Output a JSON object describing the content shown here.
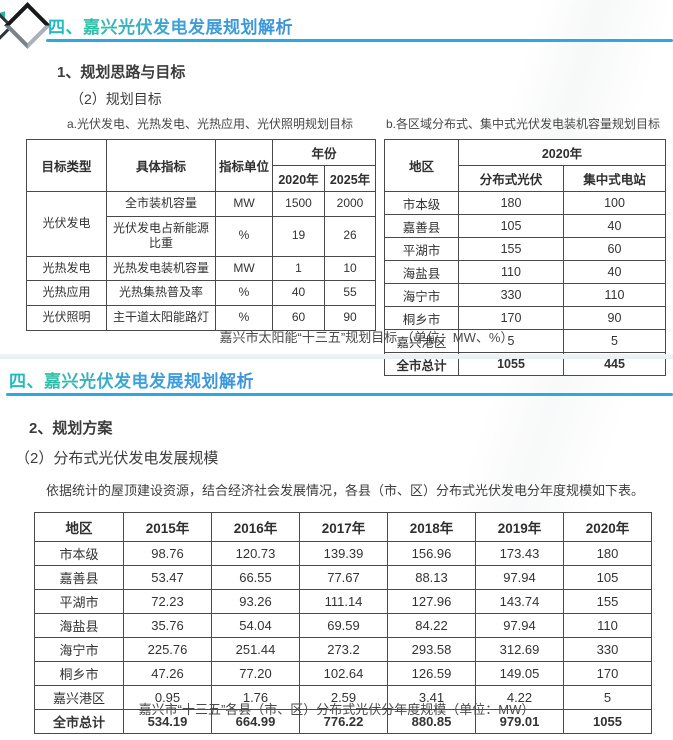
{
  "slide1": {
    "title": "四、嘉兴光伏发电发展规划解析",
    "section": "1、规划思路与目标",
    "subsection": "（2）规划目标",
    "table_a_label": "a.光伏发电、光热发电、光热应用、光伏照明规划目标",
    "table_b_label": "b.各区域分布式、集中式光伏发电装机容量规划目标",
    "caption": "嘉兴市太阳能“十三五”规划目标 （单位：MW、%）",
    "targets_table": {
      "headers": {
        "col_type": "目标类型",
        "col_indicator": "具体指标",
        "col_unit": "指标单位",
        "year_group": "年份",
        "year_cols": [
          "2020年",
          "2025年"
        ]
      },
      "rows": [
        {
          "type": "光伏发电",
          "type_rowspan": 2,
          "indicator": "全市装机容量",
          "unit": "MW",
          "values": [
            "1500",
            "2000"
          ]
        },
        {
          "indicator": "光伏发电占新能源比重",
          "unit": "%",
          "values": [
            "19",
            "26"
          ]
        },
        {
          "type": "光热发电",
          "indicator": "光热发电装机容量",
          "unit": "MW",
          "values": [
            "1",
            "10"
          ]
        },
        {
          "type": "光热应用",
          "indicator": "光热集热普及率",
          "unit": "%",
          "values": [
            "40",
            "55"
          ]
        },
        {
          "type": "光伏照明",
          "indicator": "主干道太阳能路灯",
          "unit": "%",
          "values": [
            "60",
            "90"
          ]
        }
      ]
    },
    "regions_table": {
      "headers": {
        "col_region": "地区",
        "year_group": "2020年",
        "sub_cols": [
          "分布式光伏",
          "集中式电站"
        ]
      },
      "rows": [
        {
          "region": "市本级",
          "values": [
            "180",
            "100"
          ]
        },
        {
          "region": "嘉善县",
          "values": [
            "105",
            "40"
          ]
        },
        {
          "region": "平湖市",
          "values": [
            "155",
            "60"
          ]
        },
        {
          "region": "海盐县",
          "values": [
            "110",
            "40"
          ]
        },
        {
          "region": "海宁市",
          "values": [
            "330",
            "110"
          ]
        },
        {
          "region": "桐乡市",
          "values": [
            "170",
            "90"
          ]
        },
        {
          "region": "嘉兴港区",
          "values": [
            "5",
            "5"
          ]
        }
      ],
      "total_row": {
        "region": "全市总计",
        "values": [
          "1055",
          "445"
        ]
      }
    }
  },
  "slide2": {
    "title": "四、嘉兴光伏发电发展规划解析",
    "section": "2、规划方案",
    "subsection": "（2）分布式光伏发电发展规模",
    "paragraph": "依据统计的屋顶建设资源，结合经济社会发展情况，各县（市、区）分布式光伏发电分年度规模如下表。",
    "caption": "嘉兴市“十三五”各县（市、区）分布式光伏分年度规模（单位：MW）",
    "annual_table": {
      "headers": [
        "地区",
        "2015年",
        "2016年",
        "2017年",
        "2018年",
        "2019年",
        "2020年"
      ],
      "rows": [
        {
          "region": "市本级",
          "values": [
            "98.76",
            "120.73",
            "139.39",
            "156.96",
            "173.43",
            "180"
          ]
        },
        {
          "region": "嘉善县",
          "values": [
            "53.47",
            "66.55",
            "77.67",
            "88.13",
            "97.94",
            "105"
          ]
        },
        {
          "region": "平湖市",
          "values": [
            "72.23",
            "93.26",
            "111.14",
            "127.96",
            "143.74",
            "155"
          ]
        },
        {
          "region": "海盐县",
          "values": [
            "35.76",
            "54.04",
            "69.59",
            "84.22",
            "97.94",
            "110"
          ]
        },
        {
          "region": "海宁市",
          "values": [
            "225.76",
            "251.44",
            "273.2",
            "293.58",
            "312.69",
            "330"
          ]
        },
        {
          "region": "桐乡市",
          "values": [
            "47.26",
            "77.20",
            "102.64",
            "126.59",
            "149.05",
            "170"
          ]
        },
        {
          "region": "嘉兴港区",
          "values": [
            "0.95",
            "1.76",
            "2.59",
            "3.41",
            "4.22",
            "5"
          ]
        }
      ],
      "total_row": {
        "region": "全市总计",
        "values": [
          "534.19",
          "664.99",
          "776.22",
          "880.85",
          "979.01",
          "1055"
        ]
      }
    }
  },
  "accent": {
    "underline_color": "#2ba9e2",
    "title_gradient_start": "#1cb9c9",
    "title_gradient_end": "#3b93da",
    "diamond_icon_color": "#17191c",
    "corner_accent_color": "#25b3ab"
  }
}
